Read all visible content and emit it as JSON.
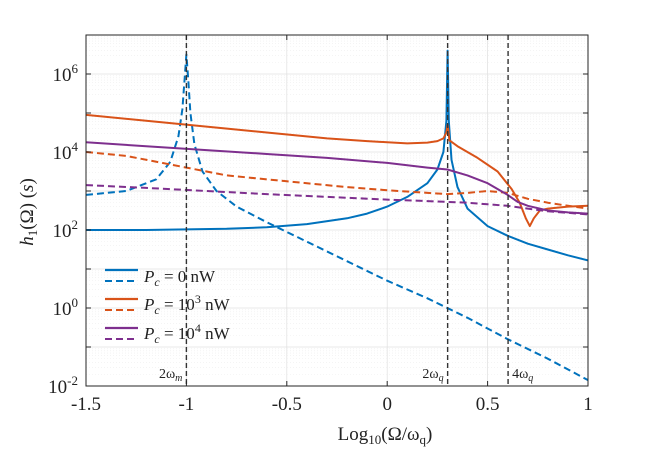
{
  "chart_data": {
    "type": "line",
    "xlabel": "Log10(Ω/ωq)",
    "ylabel": "h1(Ω) (s)",
    "xlim": [
      -1.5,
      1
    ],
    "ylim_log10": [
      -2,
      7
    ],
    "y_scale": "log",
    "grid": true,
    "legend_position": "lower-left",
    "x_ticks": [
      {
        "value": -1.5,
        "label": "-1.5"
      },
      {
        "value": -1,
        "label": "-1"
      },
      {
        "value": -0.5,
        "label": "-0.5"
      },
      {
        "value": 0,
        "label": "0"
      },
      {
        "value": 0.5,
        "label": "0.5"
      },
      {
        "value": 1,
        "label": "1"
      }
    ],
    "y_ticks": [
      {
        "exp": -2,
        "base": "10",
        "sup": "-2"
      },
      {
        "exp": 0,
        "base": "10",
        "sup": "0"
      },
      {
        "exp": 2,
        "base": "10",
        "sup": "2"
      },
      {
        "exp": 4,
        "base": "10",
        "sup": "4"
      },
      {
        "exp": 6,
        "base": "10",
        "sup": "6"
      }
    ],
    "vlines": [
      {
        "x": -1.0,
        "label": "2ωm"
      },
      {
        "x": 0.301,
        "label": "2ωq"
      },
      {
        "x": 0.602,
        "label": "4ωq"
      }
    ],
    "legend": [
      {
        "label": "Pc = 0 nW",
        "color": "#0072BD"
      },
      {
        "label": "Pc = 10^3 nW",
        "color": "#D95319"
      },
      {
        "label": "Pc = 10^4 nW",
        "color": "#7E2F8E"
      }
    ],
    "series": [
      {
        "name": "Pc = 0 nW (solid)",
        "color": "#0072BD",
        "dash": false,
        "x": [
          -1.5,
          -1.2,
          -0.8,
          -0.6,
          -0.4,
          -0.2,
          -0.1,
          0.0,
          0.1,
          0.2,
          0.25,
          0.28,
          0.295,
          0.301,
          0.307,
          0.32,
          0.35,
          0.4,
          0.5,
          0.6,
          0.7,
          0.8,
          0.9,
          1.0
        ],
        "log10y": [
          2.0,
          2.0,
          2.03,
          2.07,
          2.15,
          2.3,
          2.42,
          2.6,
          2.85,
          3.2,
          3.55,
          4.0,
          4.8,
          6.6,
          4.8,
          3.8,
          3.1,
          2.55,
          2.1,
          1.85,
          1.65,
          1.5,
          1.35,
          1.22
        ]
      },
      {
        "name": "Pc = 0 nW (dashed)",
        "color": "#0072BD",
        "dash": true,
        "x": [
          -1.5,
          -1.3,
          -1.15,
          -1.08,
          -1.04,
          -1.02,
          -1.01,
          -1.0,
          -0.99,
          -0.98,
          -0.96,
          -0.92,
          -0.85,
          -0.75,
          -0.6,
          -0.4,
          -0.2,
          0.0,
          0.2,
          0.4,
          0.6,
          0.8,
          1.0
        ],
        "log10y": [
          2.9,
          3.0,
          3.3,
          3.75,
          4.4,
          5.1,
          5.8,
          6.5,
          5.8,
          5.0,
          4.2,
          3.5,
          3.0,
          2.6,
          2.2,
          1.7,
          1.2,
          0.7,
          0.25,
          -0.25,
          -0.8,
          -1.3,
          -1.85
        ]
      },
      {
        "name": "Pc = 10^3 nW (solid)",
        "color": "#D95319",
        "dash": false,
        "x": [
          -1.5,
          -1.2,
          -0.9,
          -0.6,
          -0.3,
          -0.1,
          0.0,
          0.1,
          0.2,
          0.25,
          0.28,
          0.295,
          0.301,
          0.31,
          0.35,
          0.45,
          0.55,
          0.62,
          0.66,
          0.69,
          0.71,
          0.73,
          0.76,
          0.8,
          0.9,
          1.0
        ],
        "log10y": [
          4.95,
          4.8,
          4.65,
          4.5,
          4.35,
          4.28,
          4.25,
          4.22,
          4.24,
          4.28,
          4.35,
          4.5,
          4.7,
          4.3,
          4.15,
          3.85,
          3.5,
          3.05,
          2.7,
          2.3,
          2.1,
          2.3,
          2.5,
          2.55,
          2.6,
          2.62
        ]
      },
      {
        "name": "Pc = 10^3 nW (dashed)",
        "color": "#D95319",
        "dash": true,
        "x": [
          -1.5,
          -1.3,
          -1.1,
          -1.0,
          -0.8,
          -0.5,
          -0.2,
          0.0,
          0.2,
          0.3,
          0.4,
          0.5,
          0.6,
          0.7,
          0.8,
          0.9,
          1.0
        ],
        "log10y": [
          4.0,
          3.9,
          3.7,
          3.6,
          3.4,
          3.25,
          3.1,
          3.02,
          2.95,
          2.92,
          2.95,
          3.0,
          2.95,
          2.8,
          2.7,
          2.62,
          2.55
        ]
      },
      {
        "name": "Pc = 10^4 nW (solid)",
        "color": "#7E2F8E",
        "dash": false,
        "x": [
          -1.5,
          -1.2,
          -0.9,
          -0.6,
          -0.3,
          0.0,
          0.2,
          0.3,
          0.4,
          0.5,
          0.6,
          0.65,
          0.7,
          0.8,
          0.9,
          1.0
        ],
        "log10y": [
          4.25,
          4.15,
          4.05,
          3.95,
          3.85,
          3.72,
          3.6,
          3.55,
          3.4,
          3.2,
          2.9,
          2.72,
          2.62,
          2.5,
          2.45,
          2.42
        ]
      },
      {
        "name": "Pc = 10^4 nW (dashed)",
        "color": "#7E2F8E",
        "dash": true,
        "x": [
          -1.5,
          -1.2,
          -0.9,
          -0.6,
          -0.3,
          0.0,
          0.2,
          0.3,
          0.4,
          0.5,
          0.6,
          0.7,
          0.8,
          0.9,
          1.0
        ],
        "log10y": [
          3.15,
          3.08,
          3.0,
          2.92,
          2.85,
          2.78,
          2.74,
          2.72,
          2.7,
          2.66,
          2.62,
          2.55,
          2.48,
          2.44,
          2.4
        ]
      }
    ]
  }
}
